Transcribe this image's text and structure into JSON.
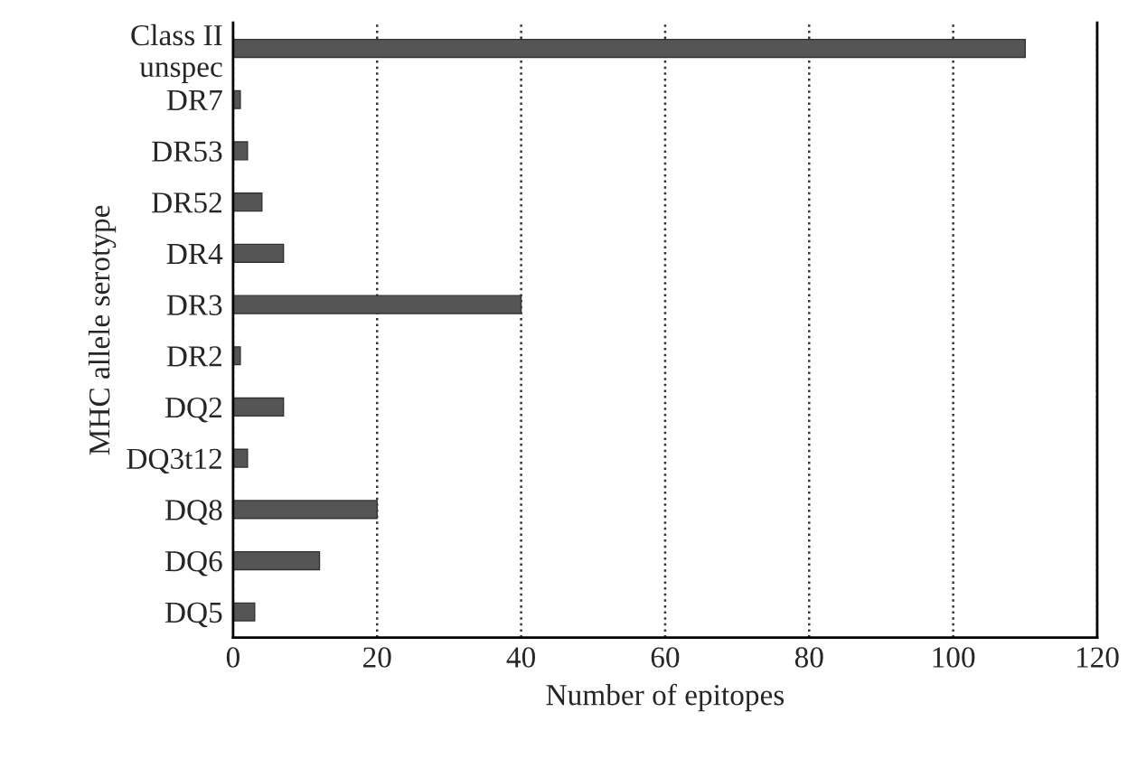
{
  "chart_data": {
    "type": "bar",
    "orientation": "horizontal",
    "xlabel": "Number of epitopes",
    "ylabel": "MHC allele serotype",
    "categories": [
      "Class II\nunspec",
      "DR7",
      "DR53",
      "DR52",
      "DR4",
      "DR3",
      "DR2",
      "DQ2",
      "DQ3t12",
      "DQ8",
      "DQ6",
      "DQ5"
    ],
    "values": [
      110,
      1,
      2,
      4,
      7,
      40,
      1,
      7,
      2,
      20,
      12,
      3
    ],
    "color": "#555555",
    "xlim": [
      0,
      120
    ],
    "xticks": [
      0,
      20,
      40,
      60,
      80,
      100,
      120
    ],
    "grid": "x",
    "legend": false
  }
}
